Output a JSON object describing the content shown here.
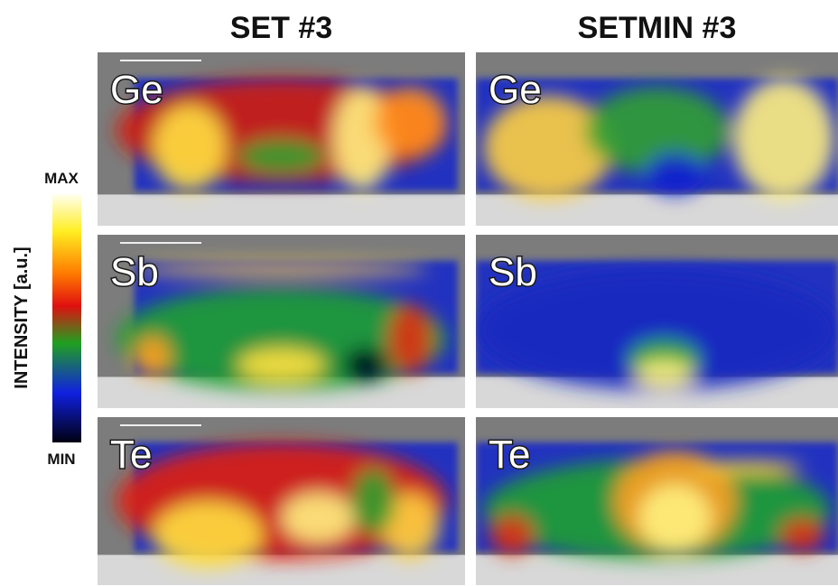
{
  "columns": [
    {
      "title": "SET #3",
      "elements": [
        "Ge",
        "Sb",
        "Te"
      ]
    },
    {
      "title": "SETMIN #3",
      "elements": [
        "Ge",
        "Sb",
        "Te"
      ]
    }
  ],
  "colorbar": {
    "label": "INTENSITY [a.u.]",
    "max": "MAX",
    "min": "MIN"
  }
}
